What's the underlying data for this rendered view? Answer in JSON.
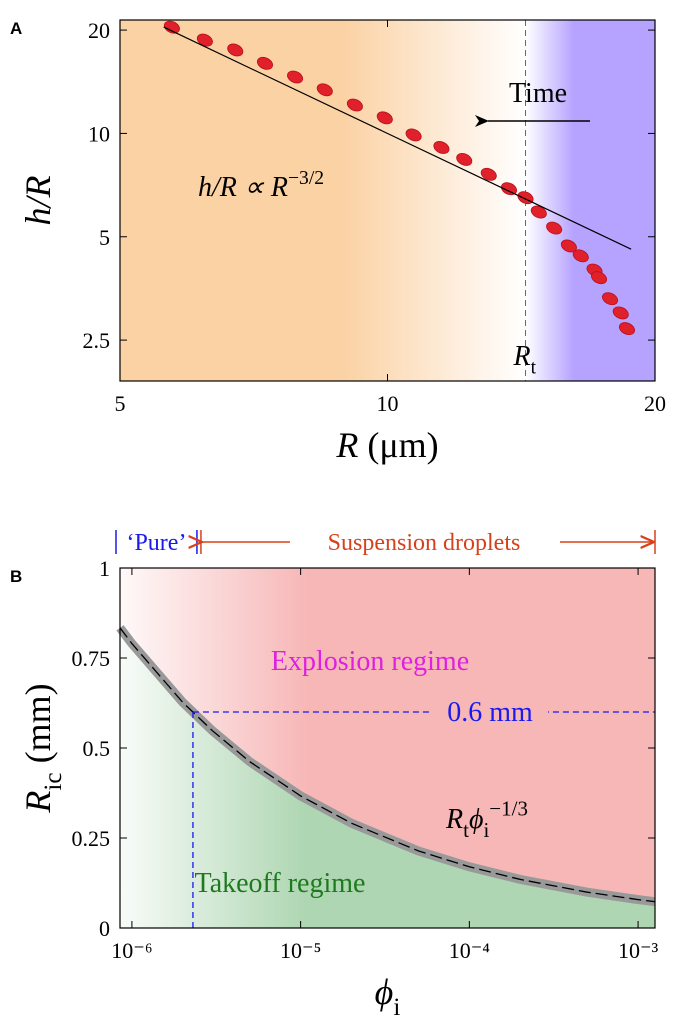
{
  "chart_data": [
    {
      "type": "scatter",
      "panel_label": "A",
      "xscale": "log",
      "yscale": "log",
      "xlim": [
        5,
        20
      ],
      "ylim": [
        1.9,
        21.4
      ],
      "xticks": [
        5,
        10,
        20
      ],
      "yticks": [
        2.5,
        5,
        10,
        20
      ],
      "xlabel": [
        {
          "text": "R",
          "style": "italic"
        },
        {
          "text": " (μm)"
        }
      ],
      "ylabel": [
        {
          "text": "h/R",
          "style": "italic"
        }
      ],
      "x": [
        5.72,
        6.23,
        6.74,
        7.28,
        7.87,
        8.5,
        9.19,
        9.93,
        10.7,
        11.5,
        12.2,
        13.0,
        13.7,
        14.3,
        14.8,
        15.4,
        16.0,
        16.5,
        17.1,
        17.3,
        17.8,
        18.3,
        18.6
      ],
      "values": [
        20.4,
        18.7,
        17.5,
        16.0,
        14.6,
        13.4,
        12.1,
        11.1,
        9.9,
        9.1,
        8.4,
        7.6,
        6.9,
        6.5,
        5.9,
        5.3,
        4.7,
        4.4,
        4.0,
        3.8,
        3.3,
        3.0,
        2.7
      ],
      "color": "#e0202a",
      "fit": {
        "x": [
          5.6,
          18.8
        ],
        "values": [
          20.4,
          4.6
        ],
        "color": "#000000"
      },
      "rt": 14.3,
      "rt_label": [
        {
          "text": "R",
          "style": "italic"
        },
        {
          "text": "t",
          "style": "sub"
        }
      ],
      "formula": [
        {
          "text": "h/R ∝ R",
          "style": "italic"
        },
        {
          "text": "−3/2",
          "style": "sup"
        }
      ],
      "arrow_label": "Time",
      "bg_colors": [
        "#fbd2a4",
        "#b6a3ff"
      ]
    },
    {
      "type": "region",
      "panel_label": "B",
      "xscale": "log",
      "xlim": [
        8.5e-07,
        0.00126
      ],
      "ylim": [
        0,
        1
      ],
      "xticks": [
        {
          "value": 1e-06,
          "label": "10⁻⁶"
        },
        {
          "value": 1e-05,
          "label": "10⁻⁵"
        },
        {
          "value": 0.0001,
          "label": "10⁻⁴"
        },
        {
          "value": 0.001,
          "label": "10⁻³"
        }
      ],
      "yticks": [
        0,
        0.25,
        0.5,
        0.75,
        1
      ],
      "xlabel": [
        {
          "text": "ϕ",
          "style": "italic"
        },
        {
          "text": "i",
          "style": "sub"
        }
      ],
      "ylabel": [
        {
          "text": "R",
          "style": "italic"
        },
        {
          "text": "ic",
          "style": "sub"
        },
        {
          "text": " (mm)"
        }
      ],
      "curve": {
        "x": [
          8.5e-07,
          1e-06,
          2e-06,
          3e-06,
          5e-06,
          1e-05,
          2e-05,
          5e-05,
          0.0001,
          0.0002,
          0.0005,
          0.001,
          0.00126
        ],
        "values": [
          0.834,
          0.79,
          0.627,
          0.548,
          0.462,
          0.367,
          0.291,
          0.214,
          0.17,
          0.135,
          0.0995,
          0.079,
          0.073
        ]
      },
      "formula": [
        {
          "text": "R",
          "style": "italic"
        },
        {
          "text": "t",
          "style": "sub"
        },
        {
          "text": "ϕ",
          "style": "italic"
        },
        {
          "text": "i",
          "style": "sub"
        },
        {
          "text": "−1/3",
          "style": "sup"
        }
      ],
      "threshold": {
        "x": 2.3e-06,
        "y": 0.6,
        "label": "0.6 mm",
        "color": "#1a1aee"
      },
      "upper_label": "Explosion regime",
      "upper_color": "#f7b7b7",
      "upper_text_color": "#e020e0",
      "lower_label": "Takeoff regime",
      "lower_color": "#aed6b2",
      "lower_text_color": "#1e7a1e",
      "pure_label": "‘Pure’",
      "pure_color": "#1a1aee",
      "suspension_label": "Suspension droplets",
      "suspension_color": "#d8401a"
    }
  ]
}
